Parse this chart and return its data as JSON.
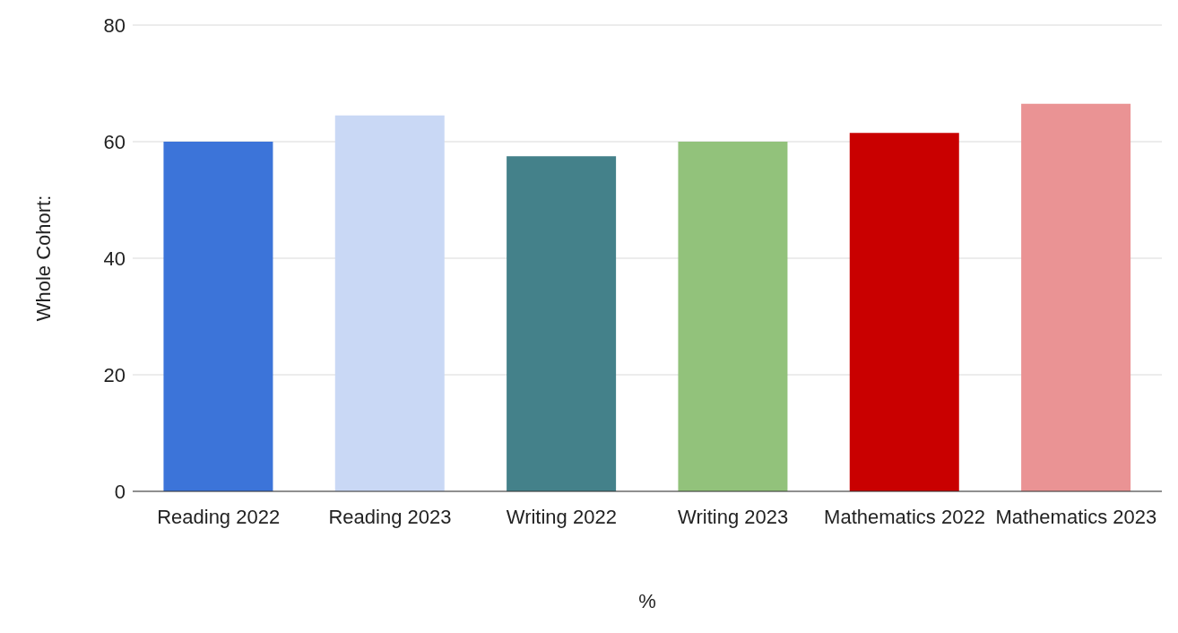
{
  "chart_data": {
    "type": "bar",
    "xlabel": "%",
    "ylabel": "Whole Cohort:",
    "categories": [
      "Reading 2022",
      "Reading 2023",
      "Writing 2022",
      "Writing 2023",
      "Mathematics 2022",
      "Mathematics 2023"
    ],
    "values": [
      60,
      64.5,
      57.5,
      60,
      61.5,
      66.5
    ],
    "colors": [
      "#3c74d9",
      "#c9d8f5",
      "#44818a",
      "#92c27b",
      "#c90000",
      "#ea9394"
    ],
    "ylim": [
      0,
      80
    ],
    "yticks": [
      0,
      20,
      40,
      60,
      80
    ],
    "grid": "y",
    "legend": false
  }
}
